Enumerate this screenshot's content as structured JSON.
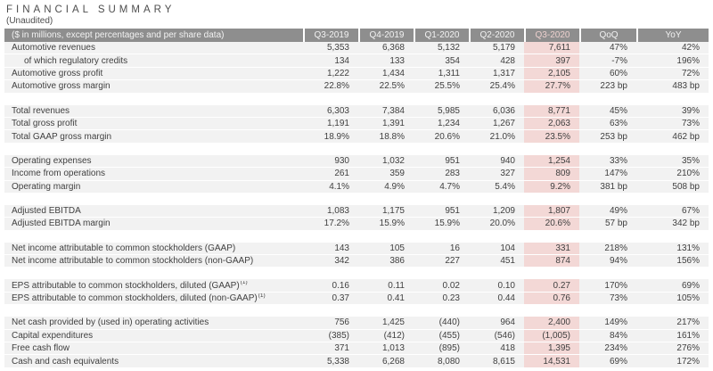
{
  "page": {
    "title": "FINANCIAL SUMMARY",
    "subtitle": "(Unaudited)"
  },
  "table": {
    "header_label": "($ in millions, except percentages and per share data)",
    "columns": [
      "Q3-2019",
      "Q4-2019",
      "Q1-2020",
      "Q2-2020",
      "Q3-2020",
      "QoQ",
      "YoY"
    ],
    "highlight_column": "Q3-2020",
    "highlight_column_index": 4,
    "colors": {
      "header_bg": "#8e8e8e",
      "header_text": "#f2f2f2",
      "highlight_header_text": "#edd0ce",
      "row_bg": "#f2f2f2",
      "highlight_cell_bg": "#f3d8d6",
      "body_text": "#404040"
    },
    "sections": [
      {
        "rows": [
          {
            "label": "Automotive revenues",
            "values": [
              "5,353",
              "6,368",
              "5,132",
              "5,179",
              "7,611",
              "47%",
              "42%"
            ]
          },
          {
            "label": "of which regulatory credits",
            "indent": true,
            "values": [
              "134",
              "133",
              "354",
              "428",
              "397",
              "-7%",
              "196%"
            ]
          },
          {
            "label": "Automotive gross profit",
            "values": [
              "1,222",
              "1,434",
              "1,311",
              "1,317",
              "2,105",
              "60%",
              "72%"
            ]
          },
          {
            "label": "Automotive gross margin",
            "values": [
              "22.8%",
              "22.5%",
              "25.5%",
              "25.4%",
              "27.7%",
              "223 bp",
              "483 bp"
            ]
          }
        ]
      },
      {
        "rows": [
          {
            "label": "Total revenues",
            "values": [
              "6,303",
              "7,384",
              "5,985",
              "6,036",
              "8,771",
              "45%",
              "39%"
            ]
          },
          {
            "label": "Total gross profit",
            "values": [
              "1,191",
              "1,391",
              "1,234",
              "1,267",
              "2,063",
              "63%",
              "73%"
            ]
          },
          {
            "label": "Total GAAP gross margin",
            "values": [
              "18.9%",
              "18.8%",
              "20.6%",
              "21.0%",
              "23.5%",
              "253 bp",
              "462 bp"
            ]
          }
        ]
      },
      {
        "rows": [
          {
            "label": "Operating expenses",
            "values": [
              "930",
              "1,032",
              "951",
              "940",
              "1,254",
              "33%",
              "35%"
            ]
          },
          {
            "label": "Income from operations",
            "values": [
              "261",
              "359",
              "283",
              "327",
              "809",
              "147%",
              "210%"
            ]
          },
          {
            "label": "Operating margin",
            "values": [
              "4.1%",
              "4.9%",
              "4.7%",
              "5.4%",
              "9.2%",
              "381 bp",
              "508 bp"
            ]
          }
        ]
      },
      {
        "rows": [
          {
            "label": "Adjusted EBITDA",
            "values": [
              "1,083",
              "1,175",
              "951",
              "1,209",
              "1,807",
              "49%",
              "67%"
            ]
          },
          {
            "label": "Adjusted EBITDA margin",
            "values": [
              "17.2%",
              "15.9%",
              "15.9%",
              "20.0%",
              "20.6%",
              "57 bp",
              "342 bp"
            ]
          }
        ]
      },
      {
        "rows": [
          {
            "label": "Net income attributable to common stockholders (GAAP)",
            "values": [
              "143",
              "105",
              "16",
              "104",
              "331",
              "218%",
              "131%"
            ]
          },
          {
            "label": "Net income attributable to common stockholders (non-GAAP)",
            "values": [
              "342",
              "386",
              "227",
              "451",
              "874",
              "94%",
              "156%"
            ]
          }
        ]
      },
      {
        "rows": [
          {
            "label": "EPS attributable to common stockholders, diluted (GAAP)",
            "footnote": "(1)",
            "values": [
              "0.16",
              "0.11",
              "0.02",
              "0.10",
              "0.27",
              "170%",
              "69%"
            ]
          },
          {
            "label": "EPS attributable to common stockholders, diluted (non-GAAP)",
            "footnote": "(1)",
            "values": [
              "0.37",
              "0.41",
              "0.23",
              "0.44",
              "0.76",
              "73%",
              "105%"
            ]
          }
        ]
      },
      {
        "rows": [
          {
            "label": "Net cash provided by (used in) operating activities",
            "values": [
              "756",
              "1,425",
              "(440)",
              "964",
              "2,400",
              "149%",
              "217%"
            ]
          },
          {
            "label": "Capital expenditures",
            "values": [
              "(385)",
              "(412)",
              "(455)",
              "(546)",
              "(1,005)",
              "84%",
              "161%"
            ]
          },
          {
            "label": "Free cash flow",
            "values": [
              "371",
              "1,013",
              "(895)",
              "418",
              "1,395",
              "234%",
              "276%"
            ]
          },
          {
            "label": "Cash and cash equivalents",
            "values": [
              "5,338",
              "6,268",
              "8,080",
              "8,615",
              "14,531",
              "69%",
              "172%"
            ]
          }
        ]
      }
    ]
  }
}
